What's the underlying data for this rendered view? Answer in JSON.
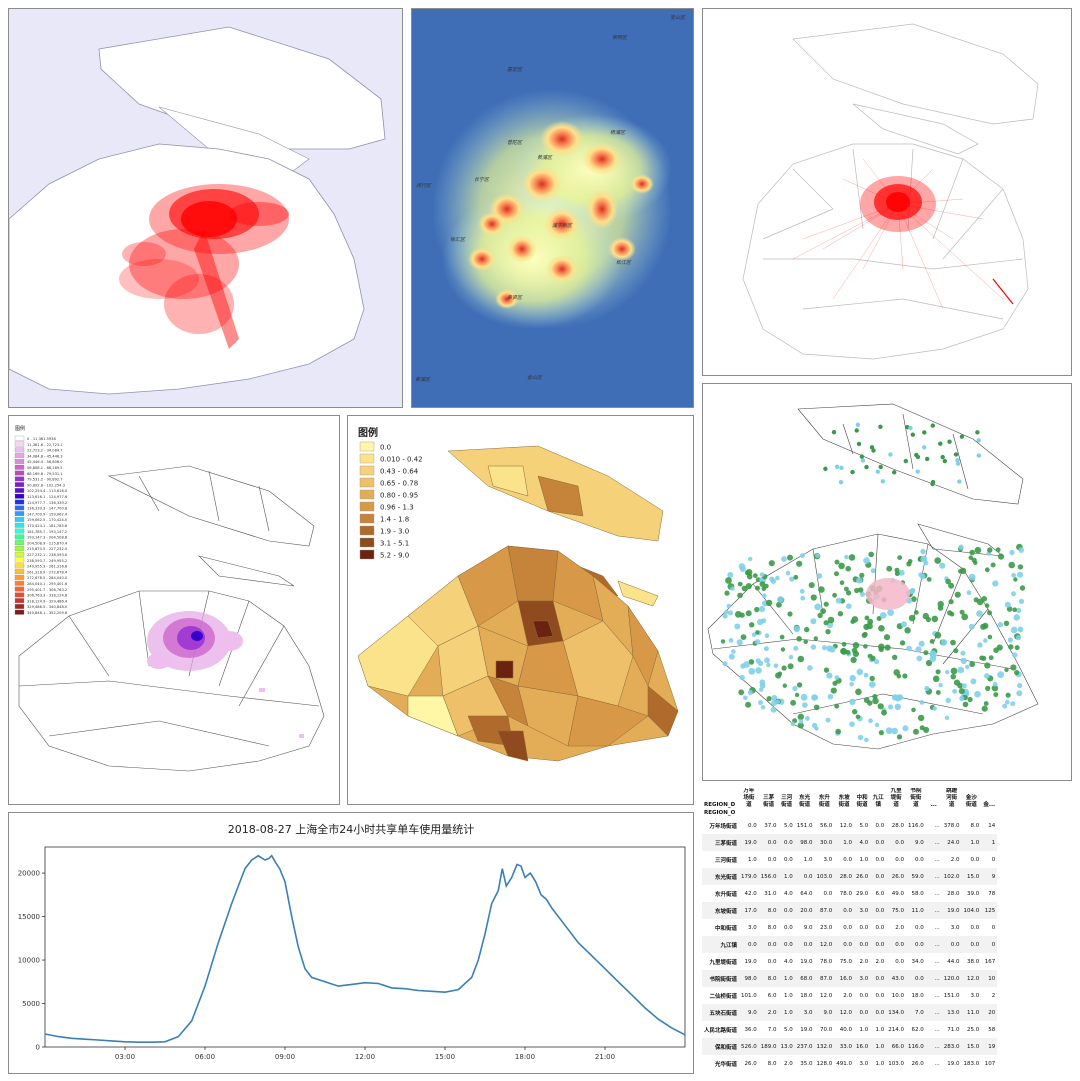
{
  "heatmap": {
    "labels": [
      "宝山区",
      "嘉定区",
      "普陀区",
      "长宁区",
      "闵行区",
      "黄浦区",
      "杨浦区",
      "徐汇区",
      "浦东新区",
      "松江区",
      "奉贤区",
      "青浦区",
      "金山区",
      "崇明区"
    ]
  },
  "legend_purple": {
    "title": "图例",
    "items": [
      {
        "label": "0 - 11,361.5938",
        "color": "#ffffff"
      },
      {
        "label": "11,361.6 - 22,723.1",
        "color": "#f5d6f5"
      },
      {
        "label": "22,723.2 - 34,084.7",
        "color": "#eebfee"
      },
      {
        "label": "34,084.8 - 45,446.3",
        "color": "#e6a6e6"
      },
      {
        "label": "45,446.4 - 56,808.0",
        "color": "#d98cd9"
      },
      {
        "label": "56,808.1 - 68,169.5",
        "color": "#cc66cc"
      },
      {
        "label": "68,169.6 - 79,531.1",
        "color": "#b84db8"
      },
      {
        "label": "79,531.2 - 90,892.7",
        "color": "#9933cc"
      },
      {
        "label": "90,892.8 - 102,254.3",
        "color": "#7a1fd1"
      },
      {
        "label": "102,254.4 - 113,616.0",
        "color": "#5c0fd6"
      },
      {
        "label": "113,616.1 - 124,977.6",
        "color": "#3300cc"
      },
      {
        "label": "124,977.7 - 136,339.2",
        "color": "#1a33e6"
      },
      {
        "label": "136,339.3 - 147,700.8",
        "color": "#3366ff"
      },
      {
        "label": "147,700.9 - 159,062.4",
        "color": "#3399ff"
      },
      {
        "label": "159,062.5 - 170,424.0",
        "color": "#33ccff"
      },
      {
        "label": "170,424.1 - 181,785.6",
        "color": "#33e6e6"
      },
      {
        "label": "181,785.7 - 193,147.2",
        "color": "#33ffcc"
      },
      {
        "label": "193,147.3 - 204,508.8",
        "color": "#33ff99"
      },
      {
        "label": "204,508.9 - 215,870.4",
        "color": "#66ff66"
      },
      {
        "label": "215,870.5 - 227,232.0",
        "color": "#99ff33"
      },
      {
        "label": "227,232.1 - 238,593.6",
        "color": "#ccff33"
      },
      {
        "label": "238,593.7 - 249,955.2",
        "color": "#ffff33"
      },
      {
        "label": "249,955.3 - 261,316.8",
        "color": "#ffe033"
      },
      {
        "label": "261,316.9 - 272,678.4",
        "color": "#ffc033"
      },
      {
        "label": "272,678.5 - 284,040.0",
        "color": "#ffa033"
      },
      {
        "label": "284,040.1 - 295,401.6",
        "color": "#ff8033"
      },
      {
        "label": "295,401.7 - 306,763.2",
        "color": "#ff6033"
      },
      {
        "label": "306,763.3 - 318,124.8",
        "color": "#e64d33"
      },
      {
        "label": "318,124.9 - 329,486.4",
        "color": "#cc3333"
      },
      {
        "label": "329,486.5 - 340,848.0",
        "color": "#a62626"
      },
      {
        "label": "340,848.1 - 352,209.6",
        "color": "#801a1a"
      }
    ]
  },
  "legend_choropleth": {
    "title": "图例",
    "items": [
      {
        "label": "0.0",
        "color": "#fff6a6"
      },
      {
        "label": "0.010 - 0.42",
        "color": "#fbe38b"
      },
      {
        "label": "0.43 - 0.64",
        "color": "#f5d27a"
      },
      {
        "label": "0.65 - 0.78",
        "color": "#edc069"
      },
      {
        "label": "0.80 - 0.95",
        "color": "#e3ad57"
      },
      {
        "label": "0.96 - 1.3",
        "color": "#d79948"
      },
      {
        "label": "1.4 - 1.8",
        "color": "#c6833a"
      },
      {
        "label": "1.9 - 3.0",
        "color": "#b06a2b"
      },
      {
        "label": "3.1 - 5.1",
        "color": "#8f4b1d"
      },
      {
        "label": "5.2 - 9.0",
        "color": "#6b2210"
      }
    ]
  },
  "chart_data": {
    "type": "line",
    "title": "2018-08-27  上海全市24小时共享单车使用量统计",
    "x_ticks": [
      "03:00",
      "06:00",
      "09:00",
      "12:00",
      "15:00",
      "18:00",
      "21:00"
    ],
    "y_ticks": [
      0,
      5000,
      10000,
      15000,
      20000
    ],
    "ylim": [
      0,
      23000
    ],
    "xlim_hours": [
      0,
      24
    ],
    "hours": [
      0,
      0.5,
      1,
      1.5,
      2,
      2.5,
      3,
      3.5,
      4,
      4.5,
      5,
      5.5,
      6,
      6.5,
      7,
      7.25,
      7.5,
      7.75,
      8,
      8.25,
      8.4,
      8.5,
      8.65,
      8.8,
      9,
      9.25,
      9.5,
      9.75,
      10,
      10.5,
      11,
      11.5,
      12,
      12.5,
      13,
      13.5,
      14,
      14.5,
      15,
      15.5,
      16,
      16.25,
      16.5,
      16.75,
      17,
      17.15,
      17.3,
      17.5,
      17.7,
      17.85,
      18,
      18.2,
      18.4,
      18.6,
      18.8,
      19,
      19.5,
      20,
      20.5,
      21,
      21.5,
      22,
      22.5,
      23,
      23.5,
      24
    ],
    "series": [
      {
        "values": [
          1500,
          1200,
          1000,
          900,
          800,
          700,
          600,
          550,
          550,
          600,
          1200,
          3000,
          7000,
          12000,
          16500,
          18500,
          20500,
          21500,
          22000,
          21500,
          21700,
          22000,
          21200,
          20500,
          19000,
          15000,
          11500,
          9000,
          8000,
          7500,
          7000,
          7200,
          7400,
          7300,
          6800,
          6700,
          6500,
          6400,
          6300,
          6600,
          8000,
          10000,
          13000,
          16500,
          18000,
          20500,
          18500,
          19500,
          21000,
          20800,
          19500,
          20000,
          19000,
          17500,
          17000,
          16000,
          14000,
          12000,
          10500,
          9000,
          7500,
          6000,
          4500,
          3200,
          2200,
          1400
        ]
      }
    ]
  },
  "od_table": {
    "corner_top": "REGION_D",
    "corner_bottom": "REGION_O",
    "columns": [
      "万年场街道",
      "三茅街道",
      "三河街道",
      "东光街道",
      "东升街道",
      "东坡街道",
      "中和街道",
      "九江镇",
      "九里堤街道",
      "书院街街道",
      "...",
      "跳蹬河街道",
      "金沙街道",
      "金..."
    ],
    "rows": [
      {
        "name": "万年场街道",
        "values": [
          "0.0",
          "37.0",
          "5.0",
          "151.0",
          "56.0",
          "12.0",
          "5.0",
          "0.0",
          "28.0",
          "116.0",
          "...",
          "378.0",
          "8.0",
          "14"
        ]
      },
      {
        "name": "三茅街道",
        "values": [
          "19.0",
          "0.0",
          "0.0",
          "98.0",
          "30.0",
          "1.0",
          "4.0",
          "0.0",
          "0.0",
          "9.0",
          "...",
          "24.0",
          "1.0",
          "1"
        ]
      },
      {
        "name": "三河街道",
        "values": [
          "1.0",
          "0.0",
          "0.0",
          "1.0",
          "3.0",
          "0.0",
          "1.0",
          "0.0",
          "0.0",
          "0.0",
          "...",
          "2.0",
          "0.0",
          "0"
        ]
      },
      {
        "name": "东光街道",
        "values": [
          "179.0",
          "156.0",
          "1.0",
          "0.0",
          "103.0",
          "28.0",
          "26.0",
          "0.0",
          "26.0",
          "59.0",
          "...",
          "102.0",
          "15.0",
          "9"
        ]
      },
      {
        "name": "东升街道",
        "values": [
          "42.0",
          "31.0",
          "4.0",
          "64.0",
          "0.0",
          "78.0",
          "29.0",
          "6.0",
          "49.0",
          "58.0",
          "...",
          "28.0",
          "39.0",
          "78"
        ]
      },
      {
        "name": "东坡街道",
        "values": [
          "17.0",
          "8.0",
          "0.0",
          "20.0",
          "87.0",
          "0.0",
          "3.0",
          "0.0",
          "75.0",
          "11.0",
          "...",
          "19.0",
          "104.0",
          "125"
        ]
      },
      {
        "name": "中和街道",
        "values": [
          "3.0",
          "8.0",
          "0.0",
          "9.0",
          "23.0",
          "0.0",
          "0.0",
          "0.0",
          "2.0",
          "0.0",
          "...",
          "3.0",
          "0.0",
          "0"
        ]
      },
      {
        "name": "九江镇",
        "values": [
          "0.0",
          "0.0",
          "0.0",
          "0.0",
          "12.0",
          "0.0",
          "0.0",
          "0.0",
          "0.0",
          "0.0",
          "...",
          "0.0",
          "0.0",
          "0"
        ]
      },
      {
        "name": "九里堤街道",
        "values": [
          "19.0",
          "0.0",
          "4.0",
          "19.0",
          "78.0",
          "75.0",
          "2.0",
          "2.0",
          "0.0",
          "34.0",
          "...",
          "44.0",
          "38.0",
          "167"
        ]
      },
      {
        "name": "书院街街道",
        "values": [
          "98.0",
          "8.0",
          "1.0",
          "68.0",
          "87.0",
          "16.0",
          "3.0",
          "0.0",
          "43.0",
          "0.0",
          "...",
          "120.0",
          "12.0",
          "10"
        ]
      },
      {
        "name": "二仙桥街道",
        "values": [
          "101.0",
          "6.0",
          "1.0",
          "18.0",
          "12.0",
          "2.0",
          "0.0",
          "0.0",
          "10.0",
          "18.0",
          "...",
          "151.0",
          "3.0",
          "2"
        ]
      },
      {
        "name": "五块石街道",
        "values": [
          "9.0",
          "2.0",
          "1.0",
          "3.0",
          "9.0",
          "12.0",
          "0.0",
          "0.0",
          "134.0",
          "7.0",
          "...",
          "13.0",
          "11.0",
          "20"
        ]
      },
      {
        "name": "人民北路街道",
        "values": [
          "36.0",
          "7.0",
          "5.0",
          "19.0",
          "70.0",
          "40.0",
          "1.0",
          "1.0",
          "214.0",
          "62.0",
          "...",
          "71.0",
          "25.0",
          "58"
        ]
      },
      {
        "name": "保和街道",
        "values": [
          "526.0",
          "189.0",
          "13.0",
          "237.0",
          "132.0",
          "33.0",
          "16.0",
          "1.0",
          "66.0",
          "116.0",
          "...",
          "283.0",
          "15.0",
          "19"
        ]
      },
      {
        "name": "光华街道",
        "values": [
          "26.0",
          "8.0",
          "2.0",
          "35.0",
          "128.0",
          "491.0",
          "3.0",
          "1.0",
          "103.0",
          "26.0",
          "...",
          "19.0",
          "183.0",
          "107"
        ]
      }
    ]
  },
  "colors": {
    "density_red": "#ff0000",
    "line_blue": "#3a7fb5",
    "heat_bg": "#3f6eb6",
    "dots_green": "#3a9a48",
    "dots_blue": "#7fd0ea",
    "region_purple": "#9a2fd0"
  }
}
